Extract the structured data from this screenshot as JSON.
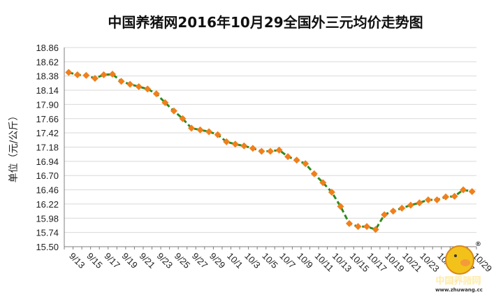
{
  "chart_data": {
    "type": "line",
    "title": "中国养猪网2016年10月29全国外三元均价走势图",
    "ylabel": "单位（元/公斤）",
    "xlabel": "",
    "ylim": [
      15.5,
      18.86
    ],
    "yticks": [
      "18.86",
      "18.62",
      "18.38",
      "18.14",
      "17.90",
      "17.66",
      "17.42",
      "17.18",
      "16.94",
      "16.70",
      "16.46",
      "16.22",
      "15.98",
      "15.74",
      "15.50"
    ],
    "grid": "horizontal",
    "legend": "none",
    "x": [
      "9/13",
      "9/14",
      "9/15",
      "9/16",
      "9/17",
      "9/18",
      "9/19",
      "9/20",
      "9/21",
      "9/22",
      "9/23",
      "9/24",
      "9/25",
      "9/26",
      "9/27",
      "9/28",
      "9/29",
      "9/30",
      "10/1",
      "10/2",
      "10/3",
      "10/4",
      "10/5",
      "10/6",
      "10/7",
      "10/8",
      "10/9",
      "10/10",
      "10/11",
      "10/12",
      "10/13",
      "10/14",
      "10/15",
      "10/16",
      "10/17",
      "10/18",
      "10/19",
      "10/20",
      "10/21",
      "10/22",
      "10/23",
      "10/24",
      "10/25",
      "10/26",
      "10/27",
      "10/28",
      "10/29"
    ],
    "xticks": [
      "9/13",
      "9/15",
      "9/17",
      "9/19",
      "9/21",
      "9/23",
      "9/25",
      "9/27",
      "9/29",
      "10/1",
      "10/3",
      "10/5",
      "10/7",
      "10/9",
      "10/11",
      "10/13",
      "10/15",
      "10/17",
      "10/19",
      "10/21",
      "10/23",
      "10/25",
      "10/27",
      "10/29"
    ],
    "series": [
      {
        "values": [
          18.44,
          18.4,
          18.39,
          18.34,
          18.4,
          18.41,
          18.29,
          18.24,
          18.2,
          18.16,
          18.08,
          17.93,
          17.79,
          17.66,
          17.5,
          17.47,
          17.44,
          17.39,
          17.27,
          17.23,
          17.2,
          17.16,
          17.11,
          17.11,
          17.13,
          17.02,
          16.96,
          16.9,
          16.73,
          16.58,
          16.42,
          16.18,
          15.89,
          15.84,
          15.84,
          15.79,
          16.04,
          16.1,
          16.15,
          16.2,
          16.24,
          16.29,
          16.29,
          16.34,
          16.35,
          16.46,
          16.43
        ]
      }
    ],
    "colors": {
      "line": "#2e8b1f",
      "marker": "#f07f1c",
      "grid": "#d9d9d9",
      "axis": "#7f7f7f"
    }
  },
  "logo": {
    "name": "中国养猪网",
    "url": "www.zhuwang.cc",
    "mark": "®"
  }
}
